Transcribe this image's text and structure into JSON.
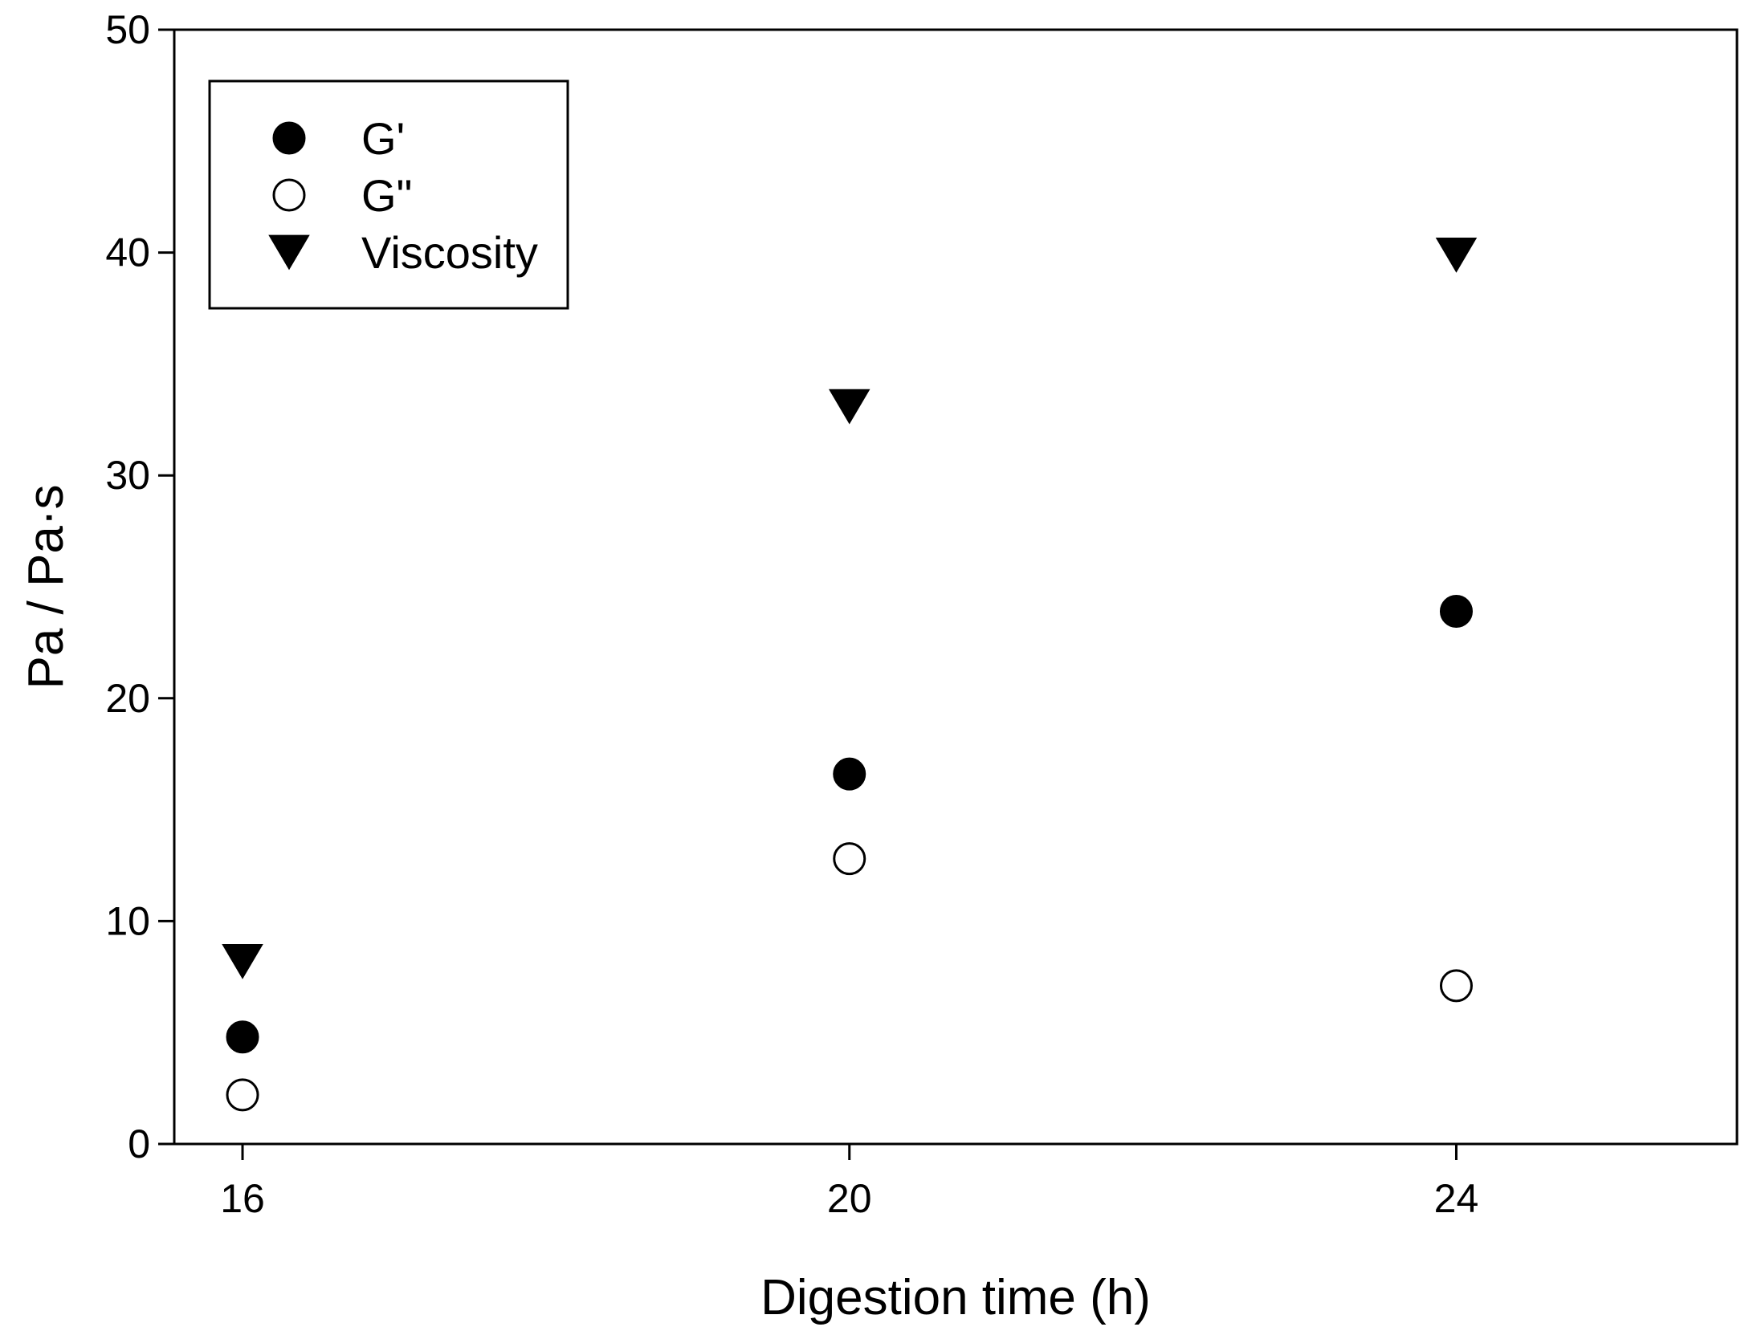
{
  "chart_data": {
    "type": "scatter",
    "title": "",
    "xlabel": "Digestion time (h)",
    "ylabel": "Pa / Pa·s",
    "x": [
      16,
      20,
      24
    ],
    "x_ticks": [
      "16",
      "20",
      "24"
    ],
    "ylim": [
      0,
      50
    ],
    "y_ticks": [
      "0",
      "10",
      "20",
      "30",
      "40",
      "50"
    ],
    "grid": false,
    "legend_position": "top-left",
    "series": [
      {
        "name": "G'",
        "marker": "filled-circle",
        "color": "#000000",
        "values": [
          4.8,
          16.6,
          23.9
        ]
      },
      {
        "name": "G\"",
        "marker": "open-circle",
        "color": "#000000",
        "values": [
          2.2,
          12.8,
          7.1
        ]
      },
      {
        "name": "Viscosity",
        "marker": "filled-triangle-down",
        "color": "#000000",
        "values": [
          8.2,
          33.1,
          39.9
        ]
      }
    ]
  }
}
